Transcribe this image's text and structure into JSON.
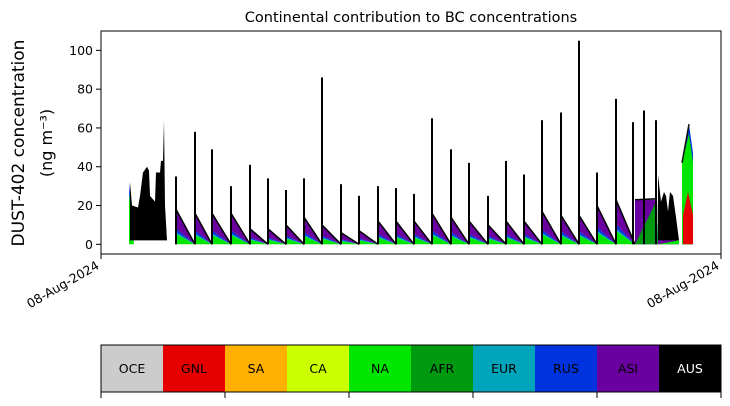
{
  "chart_data": {
    "type": "area",
    "title": "Continental contribution to BC concentrations",
    "ylabel_line1": "DUST-402 concentration",
    "ylabel_line2": "(ng m⁻³)",
    "xlabel": "",
    "x_tick_labels": [
      "08-Aug-2024",
      "08-Aug-2024"
    ],
    "xlim": [
      0,
      620
    ],
    "ylim": [
      -5,
      110
    ],
    "y_ticks": [
      0,
      20,
      40,
      60,
      80,
      100
    ],
    "grid": false,
    "legend": {
      "placement": "bottom",
      "entries": [
        {
          "label": "OCE",
          "color": "#cccccc"
        },
        {
          "label": "GNL",
          "color": "#e60000"
        },
        {
          "label": "SA",
          "color": "#ffb000"
        },
        {
          "label": "CA",
          "color": "#ccff00"
        },
        {
          "label": "NA",
          "color": "#00e600"
        },
        {
          "label": "AFR",
          "color": "#009a10"
        },
        {
          "label": "EUR",
          "color": "#00a5bb"
        },
        {
          "label": "RUS",
          "color": "#0033dd"
        },
        {
          "label": "ASI",
          "color": "#6a00a0"
        },
        {
          "label": "AUS",
          "color": "#000000"
        }
      ]
    },
    "spike_events": [
      {
        "t": 75,
        "peak": 35,
        "band": 18
      },
      {
        "t": 94,
        "peak": 58,
        "band": 16
      },
      {
        "t": 111,
        "peak": 49,
        "band": 16
      },
      {
        "t": 130,
        "peak": 30,
        "band": 16
      },
      {
        "t": 149,
        "peak": 41,
        "band": 8
      },
      {
        "t": 167,
        "peak": 34,
        "band": 8
      },
      {
        "t": 185,
        "peak": 28,
        "band": 10
      },
      {
        "t": 203,
        "peak": 34,
        "band": 14
      },
      {
        "t": 221,
        "peak": 86,
        "band": 10
      },
      {
        "t": 240,
        "peak": 31,
        "band": 6
      },
      {
        "t": 258,
        "peak": 25,
        "band": 7
      },
      {
        "t": 277,
        "peak": 30,
        "band": 12
      },
      {
        "t": 295,
        "peak": 29,
        "band": 12
      },
      {
        "t": 313,
        "peak": 26,
        "band": 12
      },
      {
        "t": 331,
        "peak": 65,
        "band": 16
      },
      {
        "t": 350,
        "peak": 49,
        "band": 14
      },
      {
        "t": 368,
        "peak": 42,
        "band": 12
      },
      {
        "t": 387,
        "peak": 25,
        "band": 10
      },
      {
        "t": 405,
        "peak": 43,
        "band": 12
      },
      {
        "t": 423,
        "peak": 36,
        "band": 12
      },
      {
        "t": 441,
        "peak": 64,
        "band": 17
      },
      {
        "t": 460,
        "peak": 68,
        "band": 15
      },
      {
        "t": 478,
        "peak": 105,
        "band": 15
      },
      {
        "t": 496,
        "peak": 37,
        "band": 20
      },
      {
        "t": 515,
        "peak": 75,
        "band": 23
      }
    ],
    "band_composition": {
      "NA": 0.3,
      "EUR": 0.05,
      "RUS": 0.1,
      "ASI": 0.55
    },
    "aus_cluster_start": [
      [
        29,
        32
      ],
      [
        31,
        20
      ],
      [
        37,
        19
      ],
      [
        39,
        25
      ],
      [
        42,
        37
      ],
      [
        46,
        40
      ],
      [
        48,
        38
      ],
      [
        49,
        25
      ],
      [
        54,
        22
      ],
      [
        55,
        37
      ],
      [
        59,
        37
      ],
      [
        60,
        43
      ],
      [
        62,
        43
      ],
      [
        63,
        64
      ],
      [
        64,
        20
      ],
      [
        66,
        2
      ],
      [
        29,
        2
      ]
    ],
    "asi_block": [
      [
        534,
        0
      ],
      [
        534,
        23
      ],
      [
        556,
        23
      ],
      [
        557,
        0
      ]
    ],
    "afr_wedge": [
      [
        534,
        0
      ],
      [
        556,
        23
      ],
      [
        557,
        0
      ]
    ],
    "late_spikes": [
      {
        "t": 532,
        "peak": 63
      },
      {
        "t": 543,
        "peak": 69
      },
      {
        "t": 555,
        "peak": 64
      }
    ],
    "aus_cluster_end": [
      [
        557,
        36
      ],
      [
        560,
        22
      ],
      [
        563,
        27
      ],
      [
        565,
        25
      ],
      [
        567,
        17
      ],
      [
        569,
        27
      ],
      [
        572,
        25
      ],
      [
        575,
        14
      ],
      [
        578,
        2
      ],
      [
        557,
        2
      ]
    ],
    "final_event": {
      "t_start": 581,
      "t_end": 592,
      "GNL_peak": 27,
      "NA_peak": 42,
      "total_peak": 62
    }
  }
}
